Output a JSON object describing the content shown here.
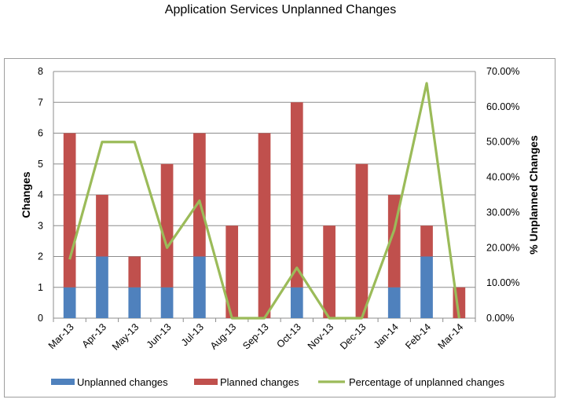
{
  "chart_data": {
    "type": "bar",
    "title": "Application Services Unplanned Changes",
    "categories": [
      "Mar-13",
      "Apr-13",
      "May-13",
      "Jun-13",
      "Jul-13",
      "Aug-13",
      "Sep-13",
      "Oct-13",
      "Nov-13",
      "Dec-13",
      "Jan-14",
      "Feb-14",
      "Mar-14"
    ],
    "series": [
      {
        "name": "Unplanned changes",
        "kind": "stacked-bar",
        "axis": "left",
        "color": "#4f81bd",
        "values": [
          1,
          2,
          1,
          1,
          2,
          0,
          0,
          1,
          0,
          0,
          1,
          2,
          0
        ]
      },
      {
        "name": "Planned changes",
        "kind": "stacked-bar",
        "axis": "left",
        "color": "#c0504d",
        "values": [
          5,
          2,
          1,
          4,
          4,
          3,
          6,
          6,
          3,
          5,
          3,
          1,
          1
        ]
      },
      {
        "name": "Percentage of unplanned changes",
        "kind": "line",
        "axis": "right",
        "color": "#9bbb59",
        "values": [
          16.67,
          50.0,
          50.0,
          20.0,
          33.33,
          0,
          0,
          14.29,
          0,
          0,
          25.0,
          66.67,
          0
        ]
      }
    ],
    "ylabel": "Changes",
    "ylim": [
      0,
      8
    ],
    "yticks": [
      "0",
      "1",
      "2",
      "3",
      "4",
      "5",
      "6",
      "7",
      "8"
    ],
    "y2label": "% Unplanned Changes",
    "y2lim": [
      0,
      70
    ],
    "y2ticks": [
      "0.00%",
      "10.00%",
      "20.00%",
      "30.00%",
      "40.00%",
      "50.00%",
      "60.00%",
      "70.00%"
    ],
    "grid": true,
    "legend_position": "bottom"
  }
}
